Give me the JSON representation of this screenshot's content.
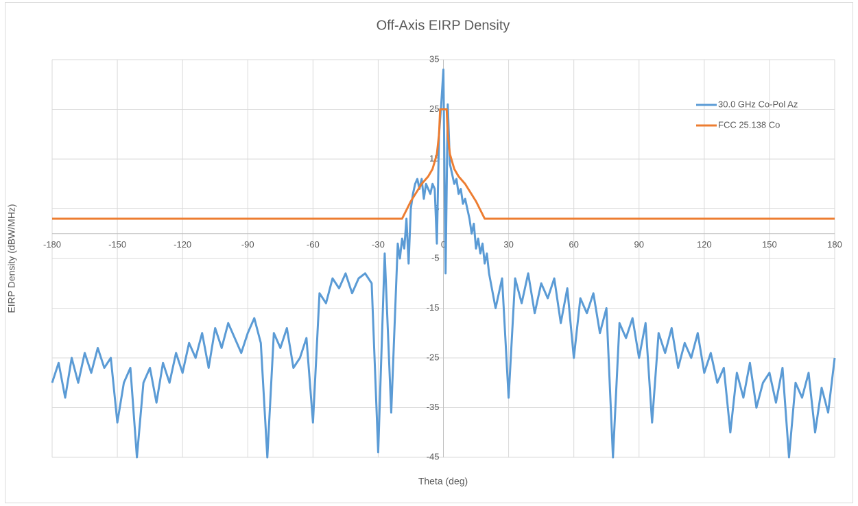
{
  "chart_data": {
    "type": "line",
    "title": "Off-Axis EIRP Density",
    "x_label": "Theta (deg)",
    "y_label": "EIRP Density (dBW/MHz)",
    "xlim": [
      -180,
      180
    ],
    "ylim": [
      -45,
      35
    ],
    "xticks": [
      -180,
      -150,
      -120,
      -90,
      -60,
      -30,
      0,
      30,
      60,
      90,
      120,
      150,
      180
    ],
    "yticks": [
      -45,
      -35,
      -25,
      -15,
      -5,
      5,
      15,
      25,
      35
    ],
    "grid": true,
    "legend": "upper right",
    "series": [
      {
        "name": "30.0 GHz Co-Pol Az",
        "color": "#5b9bd5",
        "x": [
          -180,
          -177,
          -174,
          -171,
          -168,
          -165,
          -162,
          -159,
          -156,
          -153,
          -150,
          -147,
          -144,
          -141,
          -138,
          -135,
          -132,
          -129,
          -126,
          -123,
          -120,
          -117,
          -114,
          -111,
          -108,
          -105,
          -102,
          -99,
          -96,
          -93,
          -90,
          -87,
          -84,
          -81,
          -78,
          -75,
          -72,
          -69,
          -66,
          -63,
          -60,
          -57,
          -54,
          -51,
          -48,
          -45,
          -42,
          -39,
          -36,
          -33,
          -30,
          -27,
          -24,
          -21,
          -20,
          -19,
          -18,
          -17,
          -16,
          -15,
          -14,
          -13,
          -12,
          -11,
          -10,
          -9,
          -8,
          -7,
          -6,
          -5,
          -4,
          -3,
          -2,
          -1,
          0,
          1,
          2,
          3,
          4,
          5,
          6,
          7,
          8,
          9,
          10,
          11,
          12,
          13,
          14,
          15,
          16,
          17,
          18,
          19,
          20,
          21,
          24,
          27,
          30,
          33,
          36,
          39,
          42,
          45,
          48,
          51,
          54,
          57,
          60,
          63,
          66,
          69,
          72,
          75,
          78,
          81,
          84,
          87,
          90,
          93,
          96,
          99,
          102,
          105,
          108,
          111,
          114,
          117,
          120,
          123,
          126,
          129,
          132,
          135,
          138,
          141,
          144,
          147,
          150,
          153,
          156,
          159,
          162,
          165,
          168,
          171,
          174,
          177,
          180
        ],
        "values": [
          -30,
          -26,
          -33,
          -25,
          -30,
          -24,
          -28,
          -23,
          -27,
          -25,
          -38,
          -30,
          -27,
          -45,
          -30,
          -27,
          -34,
          -26,
          -30,
          -24,
          -28,
          -22,
          -25,
          -20,
          -27,
          -19,
          -23,
          -18,
          -21,
          -24,
          -20,
          -17,
          -22,
          -45,
          -20,
          -23,
          -19,
          -27,
          -25,
          -21,
          -38,
          -12,
          -14,
          -9,
          -11,
          -8,
          -12,
          -9,
          -8,
          -10,
          -44,
          -4,
          -36,
          -2,
          -5,
          -1,
          -3,
          3,
          -6,
          5,
          8,
          10,
          11,
          9,
          11,
          7,
          10,
          9,
          8,
          10,
          9,
          -2,
          20,
          26,
          33,
          -8,
          26,
          14,
          12,
          10,
          11,
          8,
          9,
          6,
          7,
          5,
          3,
          0,
          2,
          -3,
          -1,
          -4,
          -2,
          -6,
          -4,
          -8,
          -15,
          -9,
          -33,
          -9,
          -14,
          -8,
          -16,
          -10,
          -13,
          -9,
          -18,
          -11,
          -25,
          -13,
          -16,
          -12,
          -20,
          -15,
          -45,
          -18,
          -21,
          -17,
          -25,
          -18,
          -38,
          -20,
          -24,
          -19,
          -27,
          -22,
          -25,
          -20,
          -28,
          -24,
          -30,
          -27,
          -40,
          -28,
          -33,
          -26,
          -35,
          -30,
          -28,
          -34,
          -27,
          -45,
          -30,
          -33,
          -28,
          -40,
          -31,
          -36,
          -25
        ]
      },
      {
        "name": "FCC 25.138 Co",
        "color": "#ed7d31",
        "x": [
          -180,
          -19,
          -15,
          -10,
          -7,
          -5,
          -3,
          -2,
          -1.5,
          1.5,
          2,
          3,
          5,
          7,
          10,
          15,
          19,
          180
        ],
        "values": [
          3,
          3,
          6.5,
          10,
          11.5,
          13,
          16,
          20,
          25,
          25,
          20,
          16,
          13,
          11.5,
          10,
          6.5,
          3,
          3
        ]
      }
    ]
  }
}
